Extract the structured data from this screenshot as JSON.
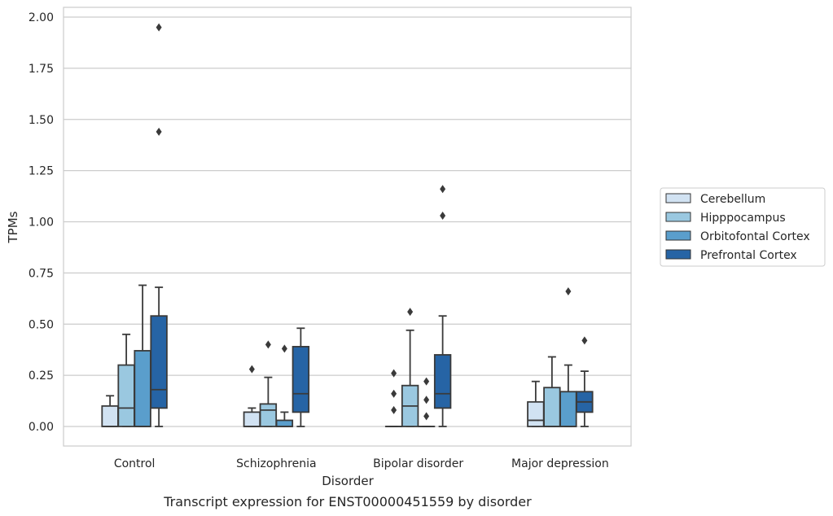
{
  "chart_data": {
    "type": "box",
    "caption": "Transcript expression for ENST00000451559 by disorder",
    "xlabel": "Disorder",
    "ylabel": "TPMs",
    "ylim": [
      -0.095,
      2.05
    ],
    "yticks": [
      "0.00",
      "0.25",
      "0.50",
      "0.75",
      "1.00",
      "1.25",
      "1.50",
      "1.75",
      "2.00"
    ],
    "grid": "horizontal",
    "legend_position": "right",
    "categories": [
      "Control",
      "Schizophrenia",
      "Bipolar disorder",
      "Major depression"
    ],
    "series": [
      {
        "name": "Cerebellum",
        "color": "#d1e2f2"
      },
      {
        "name": "Hipppocampus",
        "color": "#9ac8e0"
      },
      {
        "name": "Orbitofontal Cortex",
        "color": "#5a9ecc"
      },
      {
        "name": "Prefrontal Cortex",
        "color": "#2664a5"
      }
    ],
    "boxes": [
      [
        {
          "q1": 0.0,
          "median": 0.0,
          "q3": 0.1,
          "whislo": 0.0,
          "whishi": 0.15,
          "fliers": []
        },
        {
          "q1": 0.0,
          "median": 0.09,
          "q3": 0.3,
          "whislo": 0.0,
          "whishi": 0.45,
          "fliers": []
        },
        {
          "q1": 0.0,
          "median": 0.0,
          "q3": 0.37,
          "whislo": 0.0,
          "whishi": 0.69,
          "fliers": []
        },
        {
          "q1": 0.09,
          "median": 0.18,
          "q3": 0.54,
          "whislo": 0.0,
          "whishi": 0.68,
          "fliers": [
            1.95,
            1.44
          ]
        }
      ],
      [
        {
          "q1": 0.0,
          "median": 0.0,
          "q3": 0.07,
          "whislo": 0.0,
          "whishi": 0.09,
          "fliers": [
            0.28
          ]
        },
        {
          "q1": 0.0,
          "median": 0.08,
          "q3": 0.11,
          "whislo": 0.0,
          "whishi": 0.24,
          "fliers": [
            0.4
          ]
        },
        {
          "q1": 0.0,
          "median": 0.0,
          "q3": 0.03,
          "whislo": 0.0,
          "whishi": 0.07,
          "fliers": [
            0.38
          ]
        },
        {
          "q1": 0.07,
          "median": 0.16,
          "q3": 0.39,
          "whislo": 0.0,
          "whishi": 0.48,
          "fliers": []
        }
      ],
      [
        {
          "q1": 0.0,
          "median": 0.0,
          "q3": 0.0,
          "whislo": 0.0,
          "whishi": 0.0,
          "fliers": [
            0.26,
            0.16,
            0.08
          ]
        },
        {
          "q1": 0.0,
          "median": 0.1,
          "q3": 0.2,
          "whislo": 0.0,
          "whishi": 0.47,
          "fliers": [
            0.56
          ]
        },
        {
          "q1": 0.0,
          "median": 0.0,
          "q3": 0.0,
          "whislo": 0.0,
          "whishi": 0.0,
          "fliers": [
            0.22,
            0.13,
            0.05
          ]
        },
        {
          "q1": 0.09,
          "median": 0.16,
          "q3": 0.35,
          "whislo": 0.0,
          "whishi": 0.54,
          "fliers": [
            1.16,
            1.03
          ]
        }
      ],
      [
        {
          "q1": 0.0,
          "median": 0.03,
          "q3": 0.12,
          "whislo": 0.0,
          "whishi": 0.22,
          "fliers": []
        },
        {
          "q1": 0.0,
          "median": 0.0,
          "q3": 0.19,
          "whislo": 0.0,
          "whishi": 0.34,
          "fliers": []
        },
        {
          "q1": 0.0,
          "median": 0.0,
          "q3": 0.17,
          "whislo": 0.0,
          "whishi": 0.3,
          "fliers": [
            0.66
          ]
        },
        {
          "q1": 0.07,
          "median": 0.12,
          "q3": 0.17,
          "whislo": 0.0,
          "whishi": 0.27,
          "fliers": [
            0.42
          ]
        }
      ]
    ]
  }
}
